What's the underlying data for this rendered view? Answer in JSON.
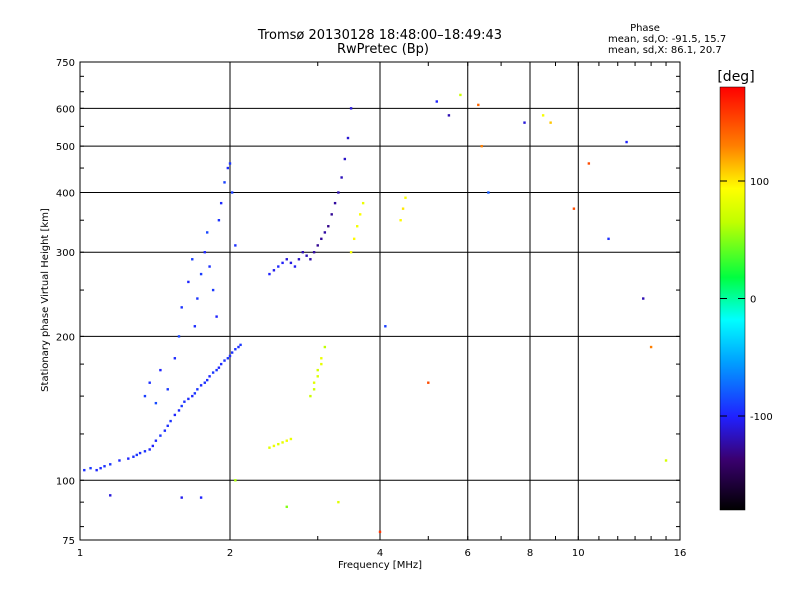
{
  "header": {
    "title": "Tromsø 20130128 18:48:00–18:49:43",
    "subtitle": "RwPretec (Bp)",
    "stats_title": "Phase",
    "stats_o": "mean, sd,O: -91.5, 15.7",
    "stats_x": "mean, sd,X:  86.1, 20.7"
  },
  "chart_data": {
    "type": "scatter",
    "xlabel": "Frequency [MHz]",
    "ylabel": "Stationary phase Virtual Height [km]",
    "x_scale": "log",
    "y_scale": "log",
    "xlim": [
      1,
      16
    ],
    "ylim": [
      75,
      750
    ],
    "grid": true,
    "x_ticks": [
      1,
      2,
      4,
      6,
      8,
      10,
      16
    ],
    "x_tick_labels": [
      "1",
      "2",
      "4",
      "6",
      "8",
      "10",
      "16"
    ],
    "x_grid": [
      2,
      4,
      6,
      8,
      10
    ],
    "y_ticks": [
      75,
      100,
      200,
      300,
      400,
      500,
      600,
      750
    ],
    "y_tick_labels": [
      "75",
      "100",
      "200",
      "300",
      "400",
      "500",
      "600",
      "750"
    ],
    "y_grid": [
      100,
      200,
      300,
      400,
      500,
      600
    ],
    "colorbar": {
      "label": "[deg]",
      "range": [
        -180,
        180
      ],
      "ticks": [
        100,
        0,
        -100
      ],
      "tick_labels": [
        "100",
        "0",
        "-100"
      ]
    },
    "series": [
      {
        "x": [
          1.02,
          1.05,
          1.08,
          1.1,
          1.12,
          1.15,
          1.2,
          1.25,
          1.28,
          1.3,
          1.32,
          1.35,
          1.38,
          1.4,
          1.42,
          1.45,
          1.48,
          1.5,
          1.52,
          1.55,
          1.58,
          1.6,
          1.62,
          1.65,
          1.68,
          1.7,
          1.72,
          1.75,
          1.78,
          1.8,
          1.82,
          1.85,
          1.88,
          1.9,
          1.92,
          1.95,
          1.98,
          2.0,
          2.02,
          2.05,
          2.08,
          2.1
        ],
        "y": [
          105,
          106,
          105,
          106,
          107,
          108,
          110,
          111,
          112,
          113,
          114,
          115,
          116,
          118,
          121,
          124,
          127,
          130,
          133,
          137,
          140,
          143,
          146,
          148,
          150,
          152,
          155,
          158,
          160,
          162,
          165,
          168,
          170,
          172,
          175,
          178,
          180,
          182,
          185,
          188,
          190,
          192
        ],
        "phase": [
          -95,
          -92,
          -98,
          -96,
          -94,
          -93,
          -97,
          -99,
          -95,
          -92,
          -96,
          -94,
          -98,
          -100,
          -97,
          -93,
          -96,
          -95,
          -94,
          -99,
          -97,
          -92,
          -95,
          -96,
          -98,
          -94,
          -93,
          -97,
          -95,
          -96,
          -98,
          -92,
          -94,
          -99,
          -96,
          -95,
          -93,
          -97,
          -95,
          -94,
          -96,
          -92
        ]
      },
      {
        "x": [
          1.35,
          1.38,
          1.42,
          1.45,
          1.5,
          1.55,
          1.58,
          1.6,
          1.65,
          1.68,
          1.7,
          1.72,
          1.75,
          1.78,
          1.8,
          1.82,
          1.85,
          1.88,
          1.9,
          1.92,
          1.95,
          1.98,
          2.0,
          2.02,
          2.05
        ],
        "y": [
          150,
          160,
          145,
          170,
          155,
          180,
          200,
          230,
          260,
          290,
          210,
          240,
          270,
          300,
          330,
          280,
          250,
          220,
          350,
          380,
          420,
          450,
          460,
          400,
          310
        ],
        "phase": [
          -90,
          -95,
          -85,
          -100,
          -92,
          -97,
          -88,
          -94,
          -99,
          -90,
          -96,
          -93,
          -91,
          -98,
          -87,
          -95,
          -92,
          -100,
          -94,
          -97,
          -89,
          -96,
          -93,
          -90,
          -95
        ]
      },
      {
        "x": [
          2.4,
          2.45,
          2.5,
          2.55,
          2.6,
          2.65,
          2.7,
          2.75,
          2.8,
          2.85,
          2.9,
          2.95,
          3.0,
          3.05,
          3.1,
          3.15,
          3.2,
          3.25,
          3.3,
          3.35,
          3.4,
          3.45,
          3.5
        ],
        "y": [
          270,
          275,
          280,
          285,
          290,
          285,
          280,
          290,
          300,
          295,
          290,
          300,
          310,
          320,
          330,
          340,
          360,
          380,
          400,
          430,
          470,
          520,
          600
        ],
        "phase": [
          -100,
          -105,
          -98,
          -102,
          -110,
          -108,
          -104,
          -115,
          -120,
          -118,
          -122,
          -125,
          -128,
          -126,
          -124,
          -130,
          -127,
          -125,
          -120,
          -118,
          -115,
          -112,
          -110
        ]
      },
      {
        "x": [
          2.9,
          2.95,
          3.0,
          3.05,
          3.1,
          2.95,
          3.0,
          3.05,
          3.5,
          3.55,
          3.6,
          3.65,
          3.7,
          4.4,
          4.45,
          4.5
        ],
        "y": [
          150,
          160,
          170,
          180,
          190,
          155,
          165,
          175,
          300,
          320,
          340,
          360,
          380,
          350,
          370,
          390
        ],
        "phase": [
          70,
          80,
          75,
          85,
          65,
          72,
          78,
          82,
          90,
          95,
          88,
          92,
          85,
          95,
          100,
          92
        ]
      },
      {
        "x": [
          2.4,
          2.45,
          2.5,
          2.55,
          2.6,
          2.65
        ],
        "y": [
          117,
          118,
          119,
          120,
          121,
          122
        ],
        "phase": [
          80,
          85,
          78,
          82,
          88,
          84
        ]
      },
      {
        "x": [
          1.15,
          1.6,
          1.75,
          2.05,
          2.6,
          3.3,
          4.0,
          4.1,
          5.0,
          5.2,
          5.5,
          5.8,
          6.3,
          6.4,
          6.6,
          7.8,
          8.5,
          8.8,
          9.8,
          10.5,
          11.5,
          12.5,
          13.5,
          14.0,
          15.0
        ],
        "y": [
          93,
          92,
          92,
          100,
          88,
          90,
          78,
          210,
          160,
          620,
          580,
          640,
          610,
          500,
          400,
          560,
          580,
          560,
          370,
          460,
          320,
          510,
          240,
          190,
          110
        ],
        "phase": [
          -110,
          -105,
          -100,
          60,
          50,
          80,
          160,
          -90,
          150,
          -100,
          -120,
          70,
          140,
          130,
          -80,
          -110,
          90,
          110,
          150,
          150,
          -95,
          -100,
          -120,
          130,
          75
        ]
      }
    ]
  }
}
